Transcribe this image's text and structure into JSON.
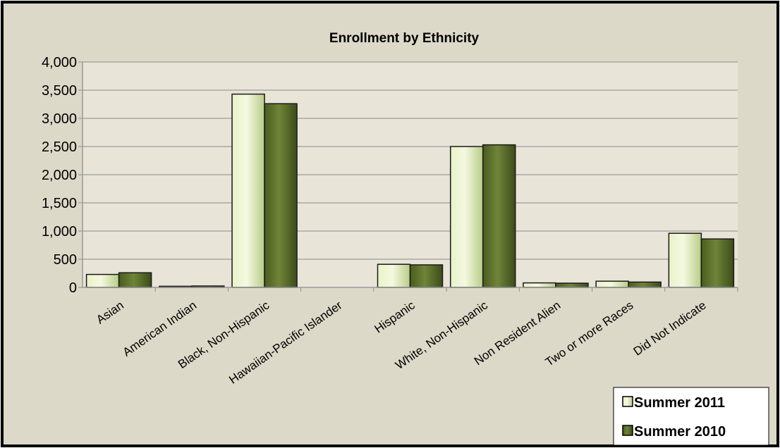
{
  "chart_data": {
    "type": "bar",
    "title": "Enrollment by Ethnicity",
    "xlabel": "",
    "ylabel": "",
    "ylim": [
      0,
      4000
    ],
    "yticks": [
      "0",
      "500",
      "1,000",
      "1,500",
      "2,000",
      "2,500",
      "3,000",
      "3,500",
      "4,000"
    ],
    "ytick_values": [
      0,
      500,
      1000,
      1500,
      2000,
      2500,
      3000,
      3500,
      4000
    ],
    "categories": [
      "Asian",
      "American Indian",
      "Black, Non-Hispanic",
      "Hawaiian-Pacific Islander",
      "Hispanic",
      "White, Non-Hispanic",
      "Non Resident Alien",
      "Two or more Races",
      "Did Not Indicate"
    ],
    "series": [
      {
        "name": "Summer 2011",
        "color": "#c8dc9a",
        "values": [
          230,
          20,
          3430,
          0,
          410,
          2500,
          80,
          110,
          960
        ]
      },
      {
        "name": "Summer 2010",
        "color": "#5b6e2a",
        "values": [
          260,
          25,
          3260,
          0,
          400,
          2530,
          75,
          95,
          860
        ]
      }
    ],
    "grid": true,
    "legend_position": "bottom-right",
    "plot_background": "#e8e4d8",
    "page_background": "#ddd9c8"
  }
}
